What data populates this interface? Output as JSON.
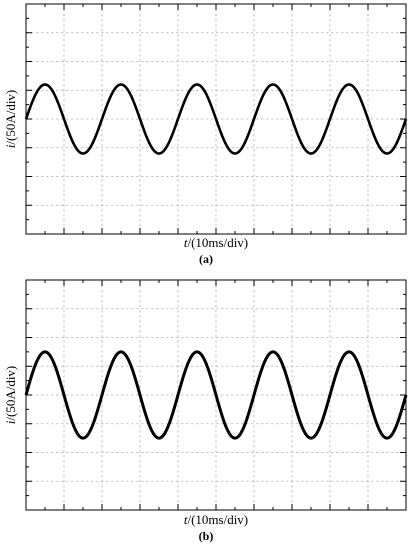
{
  "chart_data": [
    {
      "type": "line",
      "panel_label": "(a)",
      "xlabel_var": "t",
      "xlabel_unit": "/(10ms/div)",
      "ylabel_var": "i",
      "ylabel_unit": "/(50A/div)",
      "x_divisions": 10,
      "y_divisions": 8,
      "grid": true,
      "series": [
        {
          "amplitude_div": 1.2,
          "period_div": 2.0,
          "phase_div": 0.0,
          "offset_div": 0.0,
          "line_width": 2.6
        }
      ]
    },
    {
      "type": "line",
      "panel_label": "(b)",
      "xlabel_var": "t",
      "xlabel_unit": "/(10ms/div)",
      "ylabel_var": "i",
      "ylabel_unit": "/(50A/div)",
      "x_divisions": 10,
      "y_divisions": 8,
      "grid": true,
      "series": [
        {
          "amplitude_div": 1.5,
          "period_div": 2.0,
          "phase_div": 0.0,
          "offset_div": 0.0,
          "line_width": 3.0
        }
      ]
    }
  ]
}
